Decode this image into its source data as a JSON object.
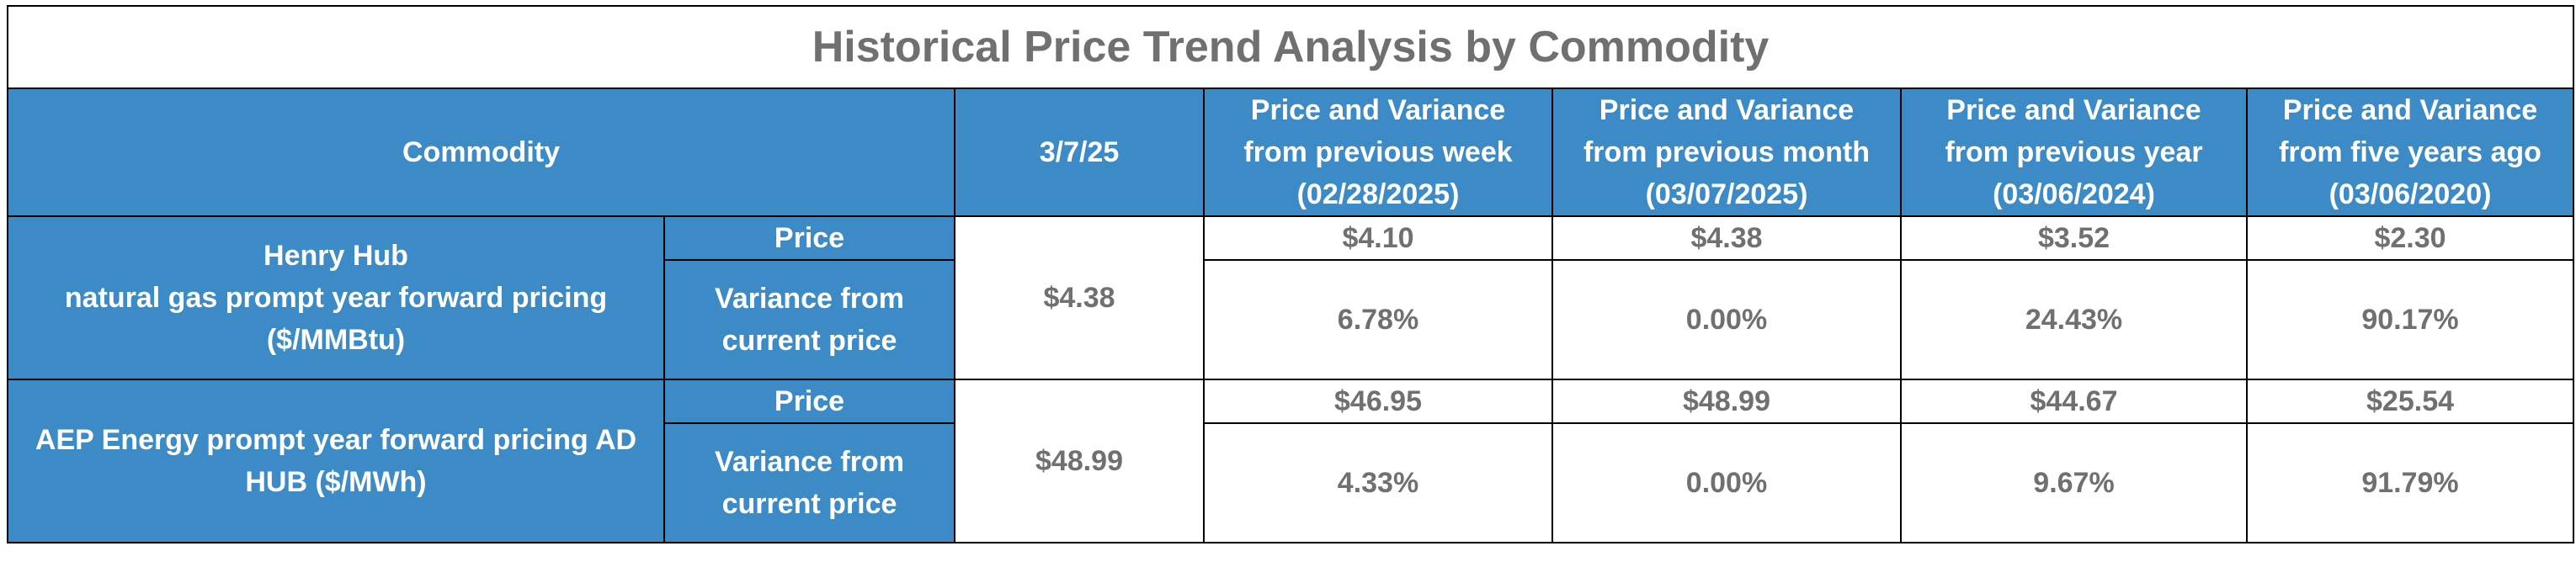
{
  "title": "Historical Price Trend Analysis by Commodity",
  "headers": {
    "commodity": "Commodity",
    "current_date": "3/7/25",
    "periods": [
      {
        "line1": "Price and Variance",
        "line2": "from previous week",
        "line3": "(02/28/2025)"
      },
      {
        "line1": "Price and Variance",
        "line2": "from previous month",
        "line3": "(03/07/2025)"
      },
      {
        "line1": "Price and Variance",
        "line2": "from previous year",
        "line3": "(03/06/2024)"
      },
      {
        "line1": "Price and Variance",
        "line2": "from five years ago",
        "line3": "(03/06/2020)"
      }
    ]
  },
  "commodities": [
    {
      "name_lines": [
        "Henry Hub",
        "natural gas prompt year forward pricing",
        "($/MMBtu)"
      ],
      "price_label": "Price",
      "variance_label_lines": [
        "Variance from",
        "current price"
      ],
      "current_price": "$4.38",
      "prices": [
        "$4.10",
        "$4.38",
        "$3.52",
        "$2.30"
      ],
      "variances": [
        "6.78%",
        "0.00%",
        "24.43%",
        "90.17%"
      ]
    },
    {
      "name_lines": [
        "AEP Energy prompt year forward pricing AD",
        "HUB ($/MWh)"
      ],
      "price_label": "Price",
      "variance_label_lines": [
        "Variance from",
        "current price"
      ],
      "current_price": "$48.99",
      "prices": [
        "$46.95",
        "$48.99",
        "$44.67",
        "$25.54"
      ],
      "variances": [
        "4.33%",
        "0.00%",
        "9.67%",
        "91.79%"
      ]
    }
  ],
  "colors": {
    "header_bg": "#3d8bc6",
    "header_text": "#ffffff",
    "body_text": "#707070",
    "border": "#000000"
  }
}
